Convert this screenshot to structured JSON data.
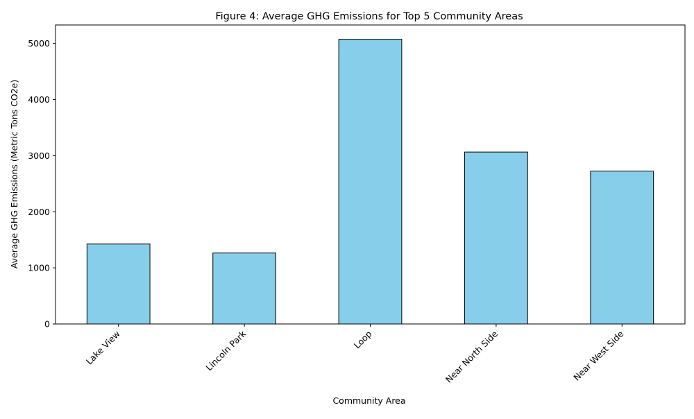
{
  "chart_data": {
    "type": "bar",
    "title": "Figure 4: Average GHG Emissions for Top 5 Community Areas",
    "xlabel": "Community Area",
    "ylabel": "Average GHG Emissions (Metric Tons CO2e)",
    "categories": [
      "Lake View",
      "Lincoln Park",
      "Loop",
      "Near North Side",
      "Near West Side"
    ],
    "values": [
      1425,
      1265,
      5075,
      3065,
      2725
    ],
    "ylim": [
      0,
      5330
    ],
    "yticks": [
      0,
      1000,
      2000,
      3000,
      4000,
      5000
    ],
    "bar_color": "#87ceeb",
    "edge_color": "#000000",
    "grid": false,
    "legend": "none"
  }
}
